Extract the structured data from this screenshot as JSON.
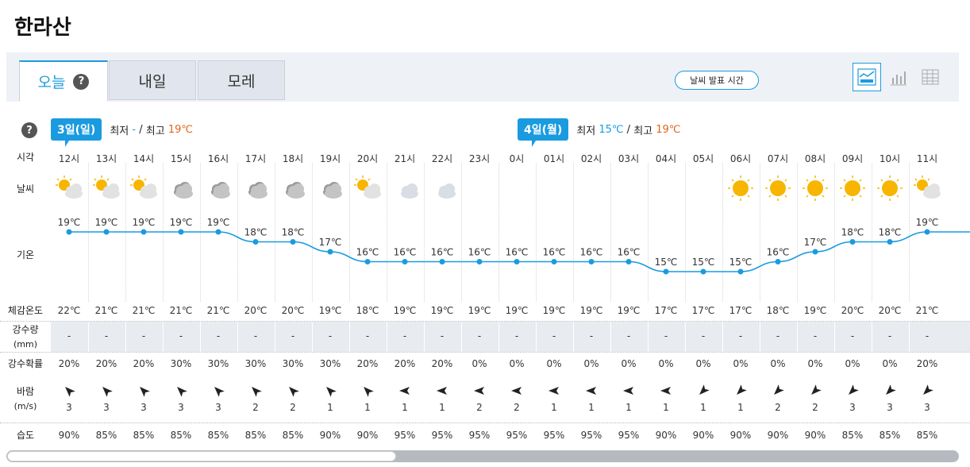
{
  "page_title": "한라산",
  "tabs": [
    {
      "label": "오늘",
      "active": true
    },
    {
      "label": "내일",
      "active": false
    },
    {
      "label": "모레",
      "active": false
    }
  ],
  "help_glyph": "?",
  "announce_button": "날씨 발표 시간",
  "view_buttons": [
    "chart-view-icon",
    "bar-view-icon",
    "table-view-icon"
  ],
  "day_headers": [
    {
      "date": "3일(일)",
      "min_label": "최저",
      "min": "-",
      "sep": "/",
      "max_label": "최고",
      "max": "19℃"
    },
    {
      "date": "4일(월)",
      "min_label": "최저",
      "min": "15℃",
      "sep": "/",
      "max_label": "최고",
      "max": "19℃"
    }
  ],
  "row_labels": {
    "time": "시각",
    "weather": "날씨",
    "temp": "기온",
    "feels": "체감온도",
    "precip": "강수량",
    "precip_unit": "(mm)",
    "prob": "강수확률",
    "wind": "바람",
    "wind_unit": "(m/s)",
    "humidity": "습도"
  },
  "colors": {
    "accent": "#1a9be0",
    "max_temp": "#e0651a",
    "tab_bg": "#e1e6ee"
  },
  "hours": [
    {
      "time": "12시",
      "icon": "partly-sunny-icon",
      "temp": 19,
      "temp_label": "19℃",
      "feels": "22℃",
      "precip": "-",
      "prob": "20%",
      "wind_dir": 315,
      "wind_speed": "3",
      "humidity": "90%"
    },
    {
      "time": "13시",
      "icon": "partly-sunny-icon",
      "temp": 19,
      "temp_label": "19℃",
      "feels": "21℃",
      "precip": "-",
      "prob": "20%",
      "wind_dir": 315,
      "wind_speed": "3",
      "humidity": "85%"
    },
    {
      "time": "14시",
      "icon": "partly-sunny-icon",
      "temp": 19,
      "temp_label": "19℃",
      "feels": "21℃",
      "precip": "-",
      "prob": "20%",
      "wind_dir": 315,
      "wind_speed": "3",
      "humidity": "85%"
    },
    {
      "time": "15시",
      "icon": "cloudy-icon",
      "temp": 19,
      "temp_label": "19℃",
      "feels": "21℃",
      "precip": "-",
      "prob": "30%",
      "wind_dir": 315,
      "wind_speed": "3",
      "humidity": "85%"
    },
    {
      "time": "16시",
      "icon": "cloudy-icon",
      "temp": 19,
      "temp_label": "19℃",
      "feels": "21℃",
      "precip": "-",
      "prob": "30%",
      "wind_dir": 315,
      "wind_speed": "3",
      "humidity": "85%"
    },
    {
      "time": "17시",
      "icon": "cloudy-icon",
      "temp": 18,
      "temp_label": "18℃",
      "feels": "20℃",
      "precip": "-",
      "prob": "30%",
      "wind_dir": 315,
      "wind_speed": "2",
      "humidity": "85%"
    },
    {
      "time": "18시",
      "icon": "cloudy-icon",
      "temp": 18,
      "temp_label": "18℃",
      "feels": "20℃",
      "precip": "-",
      "prob": "30%",
      "wind_dir": 315,
      "wind_speed": "2",
      "humidity": "85%"
    },
    {
      "time": "19시",
      "icon": "cloudy-icon",
      "temp": 17,
      "temp_label": "17℃",
      "feels": "19℃",
      "precip": "-",
      "prob": "30%",
      "wind_dir": 315,
      "wind_speed": "1",
      "humidity": "90%"
    },
    {
      "time": "20시",
      "icon": "partly-sunny-icon",
      "temp": 16,
      "temp_label": "16℃",
      "feels": "18℃",
      "precip": "-",
      "prob": "20%",
      "wind_dir": 315,
      "wind_speed": "1",
      "humidity": "90%"
    },
    {
      "time": "21시",
      "icon": "partly-cloudy-night-icon",
      "temp": 16,
      "temp_label": "16℃",
      "feels": "19℃",
      "precip": "-",
      "prob": "20%",
      "wind_dir": 270,
      "wind_speed": "1",
      "humidity": "95%"
    },
    {
      "time": "22시",
      "icon": "partly-cloudy-night-icon",
      "temp": 16,
      "temp_label": "16℃",
      "feels": "19℃",
      "precip": "-",
      "prob": "20%",
      "wind_dir": 270,
      "wind_speed": "1",
      "humidity": "95%"
    },
    {
      "time": "23시",
      "icon": "moon-icon",
      "temp": 16,
      "temp_label": "16℃",
      "feels": "19℃",
      "precip": "-",
      "prob": "0%",
      "wind_dir": 270,
      "wind_speed": "2",
      "humidity": "95%"
    },
    {
      "time": "0시",
      "icon": "moon-icon",
      "temp": 16,
      "temp_label": "16℃",
      "feels": "19℃",
      "precip": "-",
      "prob": "0%",
      "wind_dir": 270,
      "wind_speed": "2",
      "humidity": "95%"
    },
    {
      "time": "01시",
      "icon": "moon-icon",
      "temp": 16,
      "temp_label": "16℃",
      "feels": "19℃",
      "precip": "-",
      "prob": "0%",
      "wind_dir": 270,
      "wind_speed": "1",
      "humidity": "95%"
    },
    {
      "time": "02시",
      "icon": "moon-icon",
      "temp": 16,
      "temp_label": "16℃",
      "feels": "19℃",
      "precip": "-",
      "prob": "0%",
      "wind_dir": 270,
      "wind_speed": "1",
      "humidity": "95%"
    },
    {
      "time": "03시",
      "icon": "moon-icon",
      "temp": 16,
      "temp_label": "16℃",
      "feels": "19℃",
      "precip": "-",
      "prob": "0%",
      "wind_dir": 270,
      "wind_speed": "1",
      "humidity": "95%"
    },
    {
      "time": "04시",
      "icon": "moon-icon",
      "temp": 15,
      "temp_label": "15℃",
      "feels": "17℃",
      "precip": "-",
      "prob": "0%",
      "wind_dir": 270,
      "wind_speed": "1",
      "humidity": "90%"
    },
    {
      "time": "05시",
      "icon": "moon-icon",
      "temp": 15,
      "temp_label": "15℃",
      "feels": "17℃",
      "precip": "-",
      "prob": "0%",
      "wind_dir": 225,
      "wind_speed": "1",
      "humidity": "90%"
    },
    {
      "time": "06시",
      "icon": "sun-icon",
      "temp": 15,
      "temp_label": "15℃",
      "feels": "17℃",
      "precip": "-",
      "prob": "0%",
      "wind_dir": 225,
      "wind_speed": "1",
      "humidity": "90%"
    },
    {
      "time": "07시",
      "icon": "sun-icon",
      "temp": 16,
      "temp_label": "16℃",
      "feels": "18℃",
      "precip": "-",
      "prob": "0%",
      "wind_dir": 225,
      "wind_speed": "2",
      "humidity": "90%"
    },
    {
      "time": "08시",
      "icon": "sun-icon",
      "temp": 17,
      "temp_label": "17℃",
      "feels": "19℃",
      "precip": "-",
      "prob": "0%",
      "wind_dir": 225,
      "wind_speed": "2",
      "humidity": "90%"
    },
    {
      "time": "09시",
      "icon": "sun-icon",
      "temp": 18,
      "temp_label": "18℃",
      "feels": "20℃",
      "precip": "-",
      "prob": "0%",
      "wind_dir": 225,
      "wind_speed": "3",
      "humidity": "85%"
    },
    {
      "time": "10시",
      "icon": "sun-icon",
      "temp": 18,
      "temp_label": "18℃",
      "feels": "20℃",
      "precip": "-",
      "prob": "0%",
      "wind_dir": 225,
      "wind_speed": "3",
      "humidity": "85%"
    },
    {
      "time": "11시",
      "icon": "partly-sunny-icon",
      "temp": 19,
      "temp_label": "19℃",
      "feels": "21℃",
      "precip": "-",
      "prob": "20%",
      "wind_dir": 225,
      "wind_speed": "3",
      "humidity": "85%"
    }
  ]
}
